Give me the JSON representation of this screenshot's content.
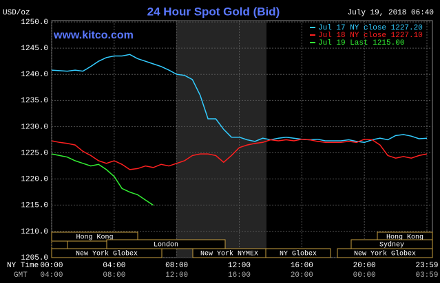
{
  "chart_data": {
    "type": "line",
    "title": "24 Hour Spot Gold (Bid)",
    "date": "July 19, 2018 06:40",
    "y_label": "USD/oz",
    "watermark": "www.kitco.com",
    "x_row_label": "NY Time",
    "x2_row_label": "GMT",
    "xlim": [
      0,
      24
    ],
    "xticks": [
      {
        "value": 0,
        "label": "00:00"
      },
      {
        "value": 4,
        "label": "04:00"
      },
      {
        "value": 8,
        "label": "08:00"
      },
      {
        "value": 12,
        "label": "12:00"
      },
      {
        "value": 16,
        "label": "16:00"
      },
      {
        "value": 20,
        "label": "20:00"
      },
      {
        "value": 24,
        "label": "23:59"
      }
    ],
    "x2ticks": [
      "04:00",
      "08:00",
      "12:00",
      "16:00",
      "20:00",
      "00:00",
      "03:59"
    ],
    "ylim": [
      1205,
      1250
    ],
    "yticks": [
      {
        "value": 1205,
        "label": "1205.0"
      },
      {
        "value": 1210,
        "label": "1210.0"
      },
      {
        "value": 1215,
        "label": "1215.0"
      },
      {
        "value": 1220,
        "label": "1220.0"
      },
      {
        "value": 1225,
        "label": "1225.0"
      },
      {
        "value": 1230,
        "label": "1230.0"
      },
      {
        "value": 1235,
        "label": "1235.0"
      },
      {
        "value": 1240,
        "label": "1240.0"
      },
      {
        "value": 1245,
        "label": "1245.0"
      },
      {
        "value": 1250,
        "label": "1250.0"
      }
    ],
    "grid": true,
    "legend": "top-right",
    "sessions": [
      "Hong Kong",
      "Hong Kong",
      "London",
      "Sydney",
      "New York Globex",
      "New York NYMEX",
      "NY Globex",
      "New York Globex"
    ],
    "series": [
      {
        "name": "Jul 17 NY close 1227.20",
        "color": "#33ccff",
        "x": [
          0,
          0.5,
          1,
          1.5,
          2,
          2.5,
          3,
          3.5,
          4,
          4.5,
          5,
          5.5,
          6,
          6.5,
          7,
          7.5,
          8,
          8.5,
          9,
          9.5,
          10,
          10.5,
          11,
          11.5,
          12,
          12.5,
          13,
          13.5,
          14,
          14.5,
          15,
          15.5,
          16,
          16.5,
          17,
          17.5,
          18,
          18.5,
          19,
          19.5,
          20,
          20.5,
          21,
          21.5,
          22,
          22.5,
          23,
          23.5,
          24
        ],
        "values": [
          1240.8,
          1240.7,
          1240.6,
          1240.8,
          1240.6,
          1241.5,
          1242.5,
          1243.2,
          1243.5,
          1243.5,
          1243.8,
          1243.0,
          1242.5,
          1242.0,
          1241.5,
          1240.8,
          1240.0,
          1239.8,
          1239.0,
          1236.0,
          1231.5,
          1231.5,
          1229.5,
          1228.0,
          1228.0,
          1227.5,
          1227.2,
          1227.8,
          1227.5,
          1227.8,
          1228.0,
          1227.8,
          1227.6,
          1227.5,
          1227.6,
          1227.3,
          1227.3,
          1227.3,
          1227.5,
          1227.2,
          1227.0,
          1227.5,
          1227.8,
          1227.5,
          1228.3,
          1228.5,
          1228.2,
          1227.7,
          1227.8
        ]
      },
      {
        "name": "Jul 18 NY close 1227.10",
        "color": "#ff2020",
        "x": [
          0,
          0.5,
          1,
          1.5,
          2,
          2.5,
          3,
          3.5,
          4,
          4.5,
          5,
          5.5,
          6,
          6.5,
          7,
          7.5,
          8,
          8.5,
          9,
          9.5,
          10,
          10.5,
          11,
          11.5,
          12,
          12.5,
          13,
          13.5,
          14,
          14.5,
          15,
          15.5,
          16,
          16.5,
          17,
          17.5,
          18,
          18.5,
          19,
          19.5,
          20,
          20.5,
          21,
          21.5,
          22,
          22.5,
          23,
          23.5,
          24
        ],
        "values": [
          1227.3,
          1227.0,
          1226.8,
          1226.5,
          1225.3,
          1224.5,
          1223.5,
          1223.0,
          1223.5,
          1222.8,
          1221.8,
          1222.0,
          1222.5,
          1222.2,
          1222.8,
          1222.5,
          1223.0,
          1223.5,
          1224.5,
          1224.8,
          1224.8,
          1224.5,
          1223.2,
          1224.5,
          1226.0,
          1226.5,
          1226.8,
          1227.0,
          1227.5,
          1227.3,
          1227.5,
          1227.3,
          1227.6,
          1227.5,
          1227.2,
          1227.0,
          1227.0,
          1227.0,
          1227.2,
          1227.0,
          1227.6,
          1227.5,
          1226.5,
          1224.5,
          1224.0,
          1224.3,
          1224.0,
          1224.5,
          1224.8
        ]
      },
      {
        "name": "Jul 19 Last 1215.00",
        "color": "#33ee33",
        "x": [
          0,
          0.5,
          1,
          1.5,
          2,
          2.5,
          3,
          3.5,
          4,
          4.5,
          5,
          5.5,
          6,
          6.5
        ],
        "values": [
          1224.8,
          1224.5,
          1224.2,
          1223.5,
          1223.0,
          1222.5,
          1222.8,
          1221.8,
          1220.5,
          1218.2,
          1217.5,
          1217.0,
          1216.0,
          1215.0
        ]
      }
    ]
  }
}
